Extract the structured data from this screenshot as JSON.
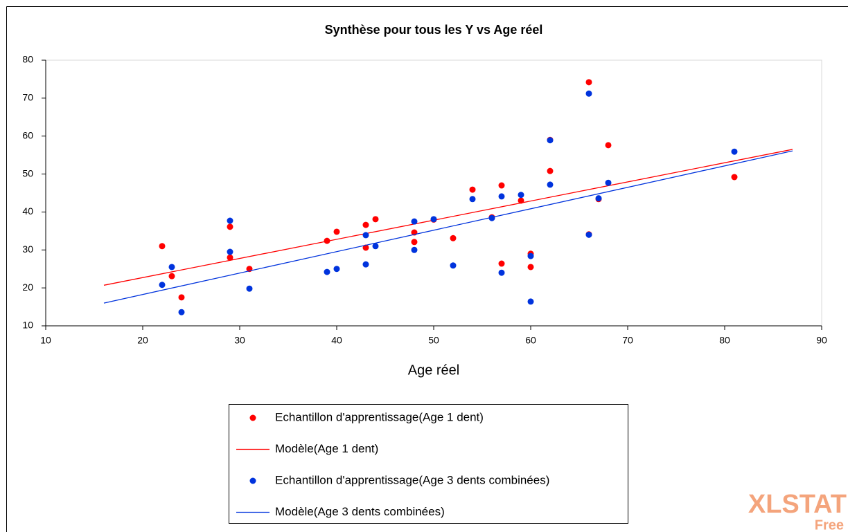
{
  "chart_data": {
    "type": "scatter",
    "title": "Synthèse pour tous les Y vs Age réel",
    "x_label": "Age réel",
    "xlim": [
      10,
      90
    ],
    "xticks": [
      10,
      20,
      30,
      40,
      50,
      60,
      70,
      80,
      90
    ],
    "ylim": [
      10,
      80
    ],
    "yticks": [
      10,
      20,
      30,
      40,
      50,
      60,
      70,
      80
    ],
    "legend": "bottom",
    "watermark": [
      "XLSTAT",
      "Free"
    ],
    "series": [
      {
        "name": "Echantillon d'apprentissage(Age 1 dent)",
        "color": "#ff0000",
        "style": "markers",
        "x": [
          22,
          23,
          24,
          29,
          29,
          31,
          39,
          40,
          43,
          43,
          44,
          48,
          48,
          50,
          52,
          54,
          56,
          57,
          57,
          59,
          60,
          60,
          62,
          62,
          66,
          66,
          67,
          68,
          81
        ],
        "values": [
          31,
          23.1,
          17.5,
          36.1,
          28,
          25,
          32.4,
          34.8,
          36.6,
          30.6,
          38.1,
          34.6,
          32.1,
          38,
          33.1,
          45.9,
          38.6,
          47,
          26.4,
          43,
          29,
          25.5,
          59,
          50.8,
          74.2,
          34.1,
          43.4,
          57.6,
          49.2
        ]
      },
      {
        "name": "Modèle(Age 1 dent)",
        "color": "#ff0000",
        "style": "line",
        "x": [
          16,
          87
        ],
        "values": [
          20.7,
          56.5
        ]
      },
      {
        "name": "Echantillon d'apprentissage(Age 3 dents combinées)",
        "color": "#0033dd",
        "style": "markers",
        "x": [
          22,
          23,
          24,
          29,
          29,
          31,
          39,
          40,
          43,
          43,
          44,
          48,
          48,
          50,
          52,
          54,
          56,
          57,
          57,
          59,
          60,
          60,
          62,
          62,
          66,
          66,
          67,
          68,
          81
        ],
        "values": [
          20.8,
          25.5,
          13.6,
          37.7,
          29.5,
          19.8,
          24.2,
          25,
          33.9,
          26.2,
          31,
          37.5,
          30,
          38.1,
          25.9,
          43.4,
          38.4,
          44.1,
          24,
          44.5,
          28.4,
          16.4,
          58.9,
          47.2,
          71.2,
          34,
          43.6,
          47.7,
          55.9
        ]
      },
      {
        "name": "Modèle(Age 3 dents combinées)",
        "color": "#0033dd",
        "style": "line",
        "x": [
          16,
          87
        ],
        "values": [
          16,
          56.1
        ]
      }
    ]
  }
}
